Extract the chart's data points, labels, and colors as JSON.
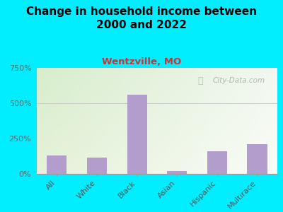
{
  "title": "Change in household income between\n2000 and 2022",
  "subtitle": "Wentzville, MO",
  "categories": [
    "All",
    "White",
    "Black",
    "Asian",
    "Hispanic",
    "Multirace"
  ],
  "values": [
    130,
    115,
    560,
    18,
    160,
    210
  ],
  "bar_color": "#b39dcc",
  "title_fontsize": 11,
  "subtitle_fontsize": 9.5,
  "subtitle_color": "#cc3333",
  "background_outer": "#00eeff",
  "plot_bg_topleft": "#d8edce",
  "plot_bg_bottomright": "#f0f5ee",
  "yticks": [
    0,
    250,
    500,
    750
  ],
  "ylim": [
    0,
    750
  ],
  "ylabel_format": "{}%",
  "watermark": "City-Data.com",
  "watermark_color": "#aaaaaa"
}
